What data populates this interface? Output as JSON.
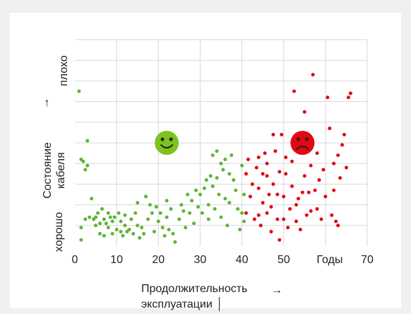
{
  "chart_data": {
    "type": "scatter",
    "x_ticks": [
      "0",
      "10",
      "20",
      "30",
      "40",
      "50",
      "Годы",
      "70"
    ],
    "xlim": [
      0,
      70
    ],
    "ylim": [
      0,
      10
    ],
    "xlabel_line1": "Продолжительность",
    "xlabel_line2": "эксплуатации",
    "x_arrow": "→",
    "ylabel_good": "хорошо",
    "ylabel_state_line1": "Состояние",
    "ylabel_state_line2": "кабеля",
    "ylabel_bad": "плохо",
    "y_arrow": "→",
    "grid": true,
    "colors": {
      "green": "#5db532",
      "red": "#e30613",
      "grid": "#d8d8dc",
      "good_face": "#7dc21e",
      "bad_face": "#e30613"
    },
    "icons": {
      "good": "smiley-face-icon",
      "bad": "frowning-face-icon"
    },
    "emoji_good_pos": [
      22,
      5
    ],
    "emoji_bad_pos": [
      54.5,
      5
    ],
    "series": [
      {
        "color": "green",
        "points": [
          [
            1,
            7.5
          ],
          [
            1.5,
            4.2
          ],
          [
            2,
            4.1
          ],
          [
            2.5,
            3.7
          ],
          [
            3,
            3.9
          ],
          [
            3,
            5.1
          ],
          [
            3.5,
            1.4
          ],
          [
            2.5,
            1.3
          ],
          [
            1.5,
            0.9
          ],
          [
            1.5,
            0.3
          ],
          [
            4,
            2.3
          ],
          [
            4.5,
            1.3
          ],
          [
            5,
            1.4
          ],
          [
            5,
            1.0
          ],
          [
            5.5,
            1.6
          ],
          [
            6,
            1.1
          ],
          [
            6,
            0.6
          ],
          [
            6.5,
            1.8
          ],
          [
            7,
            1.3
          ],
          [
            7,
            0.5
          ],
          [
            7.5,
            1.1
          ],
          [
            8,
            0.9
          ],
          [
            8,
            1.6
          ],
          [
            8.5,
            1.4
          ],
          [
            9,
            1.2
          ],
          [
            9,
            0.6
          ],
          [
            9.5,
            1.4
          ],
          [
            10,
            0.8
          ],
          [
            10.5,
            1.6
          ],
          [
            11,
            1.2
          ],
          [
            11,
            0.7
          ],
          [
            11.5,
            0.5
          ],
          [
            12,
            1.5
          ],
          [
            12,
            1.0
          ],
          [
            12.5,
            0.7
          ],
          [
            13,
            0.8
          ],
          [
            13.5,
            1.3
          ],
          [
            14,
            0.6
          ],
          [
            14.5,
            1.6
          ],
          [
            15,
            2.1
          ],
          [
            15,
            1.0
          ],
          [
            15.5,
            0.4
          ],
          [
            16,
            0.9
          ],
          [
            16.5,
            0.6
          ],
          [
            17,
            2.4
          ],
          [
            17.5,
            1.3
          ],
          [
            18,
            2.0
          ],
          [
            18.5,
            1.6
          ],
          [
            19,
            0.7
          ],
          [
            19.5,
            1.9
          ],
          [
            20,
            1.2
          ],
          [
            20.5,
            1.6
          ],
          [
            21,
            0.9
          ],
          [
            21.5,
            0.5
          ],
          [
            22,
            1.4
          ],
          [
            22,
            2.2
          ],
          [
            22.5,
            0.8
          ],
          [
            23,
            1.8
          ],
          [
            23.5,
            0.6
          ],
          [
            24,
            0.2
          ],
          [
            25,
            1.3
          ],
          [
            25.5,
            2.0
          ],
          [
            26,
            1.7
          ],
          [
            26.5,
            0.9
          ],
          [
            27,
            2.5
          ],
          [
            27.5,
            1.6
          ],
          [
            28,
            2.2
          ],
          [
            28.5,
            1.1
          ],
          [
            29,
            2.7
          ],
          [
            29.5,
            1.9
          ],
          [
            30,
            2.5
          ],
          [
            30.5,
            1.6
          ],
          [
            31,
            2.8
          ],
          [
            31.5,
            3.2
          ],
          [
            32,
            1.3
          ],
          [
            32,
            2.0
          ],
          [
            32.5,
            3.4
          ],
          [
            33,
            2.9
          ],
          [
            33,
            4.4
          ],
          [
            33.5,
            1.8
          ],
          [
            34,
            3.3
          ],
          [
            34,
            4.6
          ],
          [
            34.5,
            2.5
          ],
          [
            35,
            4.0
          ],
          [
            35,
            1.4
          ],
          [
            35.5,
            3.7
          ],
          [
            36,
            2.3
          ],
          [
            36,
            4.2
          ],
          [
            36.5,
            1.0
          ],
          [
            37,
            3.5
          ],
          [
            37,
            2.1
          ],
          [
            37.5,
            4.4
          ],
          [
            38,
            3.2
          ],
          [
            38.5,
            2.7
          ],
          [
            39,
            1.8
          ],
          [
            39.5,
            0.8
          ],
          [
            40,
            1.6
          ],
          [
            40,
            3.9
          ],
          [
            40.5,
            2.5
          ],
          [
            40.5,
            1.2
          ]
        ]
      },
      {
        "color": "red",
        "points": [
          [
            41,
            1.6
          ],
          [
            41,
            3.5
          ],
          [
            41.5,
            4.2
          ],
          [
            42,
            2.4
          ],
          [
            42.5,
            3.0
          ],
          [
            43,
            1.3
          ],
          [
            43.5,
            3.8
          ],
          [
            44,
            2.8
          ],
          [
            44,
            4.3
          ],
          [
            44.5,
            1.0
          ],
          [
            45,
            2.1
          ],
          [
            45,
            3.5
          ],
          [
            45.5,
            4.5
          ],
          [
            46,
            1.6
          ],
          [
            46,
            3.4
          ],
          [
            46.5,
            2.5
          ],
          [
            47,
            0.7
          ],
          [
            47,
            1.9
          ],
          [
            47.5,
            3.0
          ],
          [
            47.5,
            5.4
          ],
          [
            48,
            4.6
          ],
          [
            48.5,
            1.3
          ],
          [
            48.5,
            2.5
          ],
          [
            49,
            3.6
          ],
          [
            49,
            0.3
          ],
          [
            49.5,
            5.4
          ],
          [
            50,
            2.4
          ],
          [
            50,
            1.3
          ],
          [
            50.5,
            3.5
          ],
          [
            51,
            0.9
          ],
          [
            51.5,
            1.8
          ],
          [
            52,
            2.9
          ],
          [
            52,
            4.1
          ],
          [
            52.5,
            7.5
          ],
          [
            53,
            1.2
          ],
          [
            53.5,
            2.3
          ],
          [
            54,
            0.8
          ],
          [
            54.5,
            2.6
          ],
          [
            55,
            3.4
          ],
          [
            55,
            6.5
          ],
          [
            55.5,
            1.5
          ],
          [
            56,
            2.6
          ],
          [
            56.5,
            1.7
          ],
          [
            56.5,
            3.9
          ],
          [
            57,
            8.3
          ],
          [
            57.5,
            2.7
          ],
          [
            58,
            1.8
          ],
          [
            58,
            4.5
          ],
          [
            58.5,
            3.2
          ],
          [
            59,
            1.3
          ],
          [
            59.5,
            3.7
          ],
          [
            60,
            2.4
          ],
          [
            60.5,
            7.2
          ],
          [
            61,
            5.7
          ],
          [
            61.5,
            1.5
          ],
          [
            62,
            4.0
          ],
          [
            62,
            2.7
          ],
          [
            63,
            4.4
          ],
          [
            63.5,
            3.3
          ],
          [
            64,
            4.9
          ],
          [
            64.5,
            5.4
          ],
          [
            65,
            3.8
          ],
          [
            65.5,
            7.2
          ],
          [
            66,
            7.4
          ],
          [
            63,
            1.0
          ],
          [
            62.5,
            1.2
          ],
          [
            53,
            2.0
          ],
          [
            46,
            4.0
          ],
          [
            44,
            1.5
          ],
          [
            50.5,
            4.3
          ]
        ]
      }
    ]
  }
}
